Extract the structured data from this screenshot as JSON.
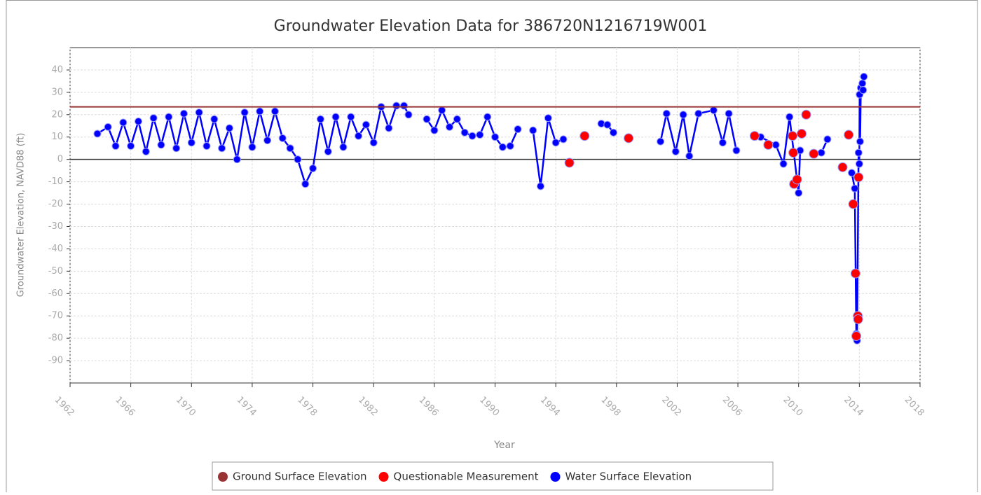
{
  "chart_data": {
    "type": "line",
    "title": "Groundwater Elevation Data for 386720N1216719W001",
    "x_label": "Year",
    "y_label": "Groundwater Elevation, NAVD88 (ft)",
    "xlim": [
      1962,
      2018
    ],
    "xticks": [
      1962,
      1966,
      1970,
      1974,
      1978,
      1982,
      1986,
      1990,
      1994,
      1998,
      2002,
      2006,
      2010,
      2014,
      2018
    ],
    "ylim": [
      -100,
      50
    ],
    "yticks": [
      -90,
      -80,
      -70,
      -60,
      -50,
      -40,
      -30,
      -20,
      -10,
      0,
      10,
      20,
      30,
      40
    ],
    "grid": true,
    "legend": "bottom",
    "series": [
      {
        "name": "Ground Surface Elevation",
        "color": "#993333",
        "style": "hline",
        "values": [
          23.5
        ]
      },
      {
        "name": "Questionable Measurement",
        "color": "#ff0000",
        "style": "points",
        "x": [
          1994.9,
          1995.9,
          1998.8,
          2007.1,
          2008.0,
          2009.6,
          2009.65,
          2009.7,
          2009.9,
          2010.2,
          2010.5,
          2011.0,
          2012.9,
          2013.3,
          2013.6,
          2013.75,
          2013.8,
          2013.9,
          2013.92,
          2013.95
        ],
        "values": [
          -1.5,
          10.5,
          9.5,
          10.5,
          6.5,
          10.5,
          3,
          -11,
          -9,
          11.5,
          20,
          2.5,
          -3.5,
          11,
          -20,
          -51,
          -79,
          -70,
          -71.5,
          -8
        ]
      },
      {
        "name": "Water Surface Elevation",
        "color": "#0000ff",
        "style": "line",
        "x": [
          1963.8,
          1964.5,
          1965.0,
          1965.5,
          1966.0,
          1966.5,
          1967.0,
          1967.5,
          1968.0,
          1968.5,
          1969.0,
          1969.5,
          1970.0,
          1970.5,
          1971.0,
          1971.5,
          1972.0,
          1972.5,
          1973.0,
          1973.5,
          1974.0,
          1974.5,
          1975.0,
          1975.5,
          1976.0,
          1976.5,
          1977.0,
          1977.5,
          1978.0,
          1978.5,
          1979.0,
          1979.5,
          1980.0,
          1980.5,
          1981.0,
          1981.5,
          1982.0,
          1982.5,
          1983.0,
          1983.5,
          1984.0,
          1984.3,
          null,
          1985.5,
          1986.0,
          1986.5,
          1987.0,
          1987.5,
          1988.0,
          1988.5,
          1989.0,
          1989.5,
          1990.0,
          1990.5,
          1991.0,
          1991.5,
          null,
          1992.5,
          1993.0,
          1993.5,
          1994.0,
          1994.5,
          null,
          1997.0,
          1997.4,
          1997.8,
          null,
          2000.9,
          2001.3,
          2001.9,
          2002.4,
          2002.8,
          2003.4,
          2004.4,
          2005.0,
          2005.4,
          2005.9,
          null,
          2007.5,
          2008.5,
          2009.0,
          2009.4,
          2010.0,
          2010.1,
          null,
          2011.5,
          2011.9,
          null,
          2013.5,
          2013.7,
          2013.8,
          2013.85,
          2013.95,
          2014.0,
          2014.02,
          2014.05,
          2014.1,
          2014.2,
          2014.25,
          2014.3
        ],
        "values": [
          11.5,
          14.5,
          6,
          16.5,
          6,
          17,
          3.5,
          18.5,
          6.5,
          19,
          5,
          20.5,
          7.5,
          21,
          6,
          18,
          5,
          14,
          0,
          21,
          5.5,
          21.5,
          8.5,
          21.5,
          9.5,
          5,
          0,
          -11,
          -4,
          18,
          3.5,
          19,
          5.5,
          19,
          10.5,
          15.5,
          7.5,
          23.5,
          14,
          24,
          24,
          20,
          null,
          18,
          13,
          22,
          14.5,
          18,
          12,
          10.5,
          11,
          19,
          10,
          5.5,
          6,
          13.5,
          null,
          13,
          -12,
          18.5,
          7.5,
          9,
          null,
          16,
          15.5,
          12,
          null,
          8,
          20.5,
          3.5,
          20,
          1.5,
          20.5,
          22,
          7.5,
          20.5,
          4,
          null,
          10,
          6.5,
          -2,
          19,
          -15,
          4,
          null,
          3,
          9,
          null,
          -6,
          -13,
          -78,
          -81,
          3,
          -2,
          29,
          8,
          32,
          34,
          31,
          37
        ]
      }
    ]
  }
}
